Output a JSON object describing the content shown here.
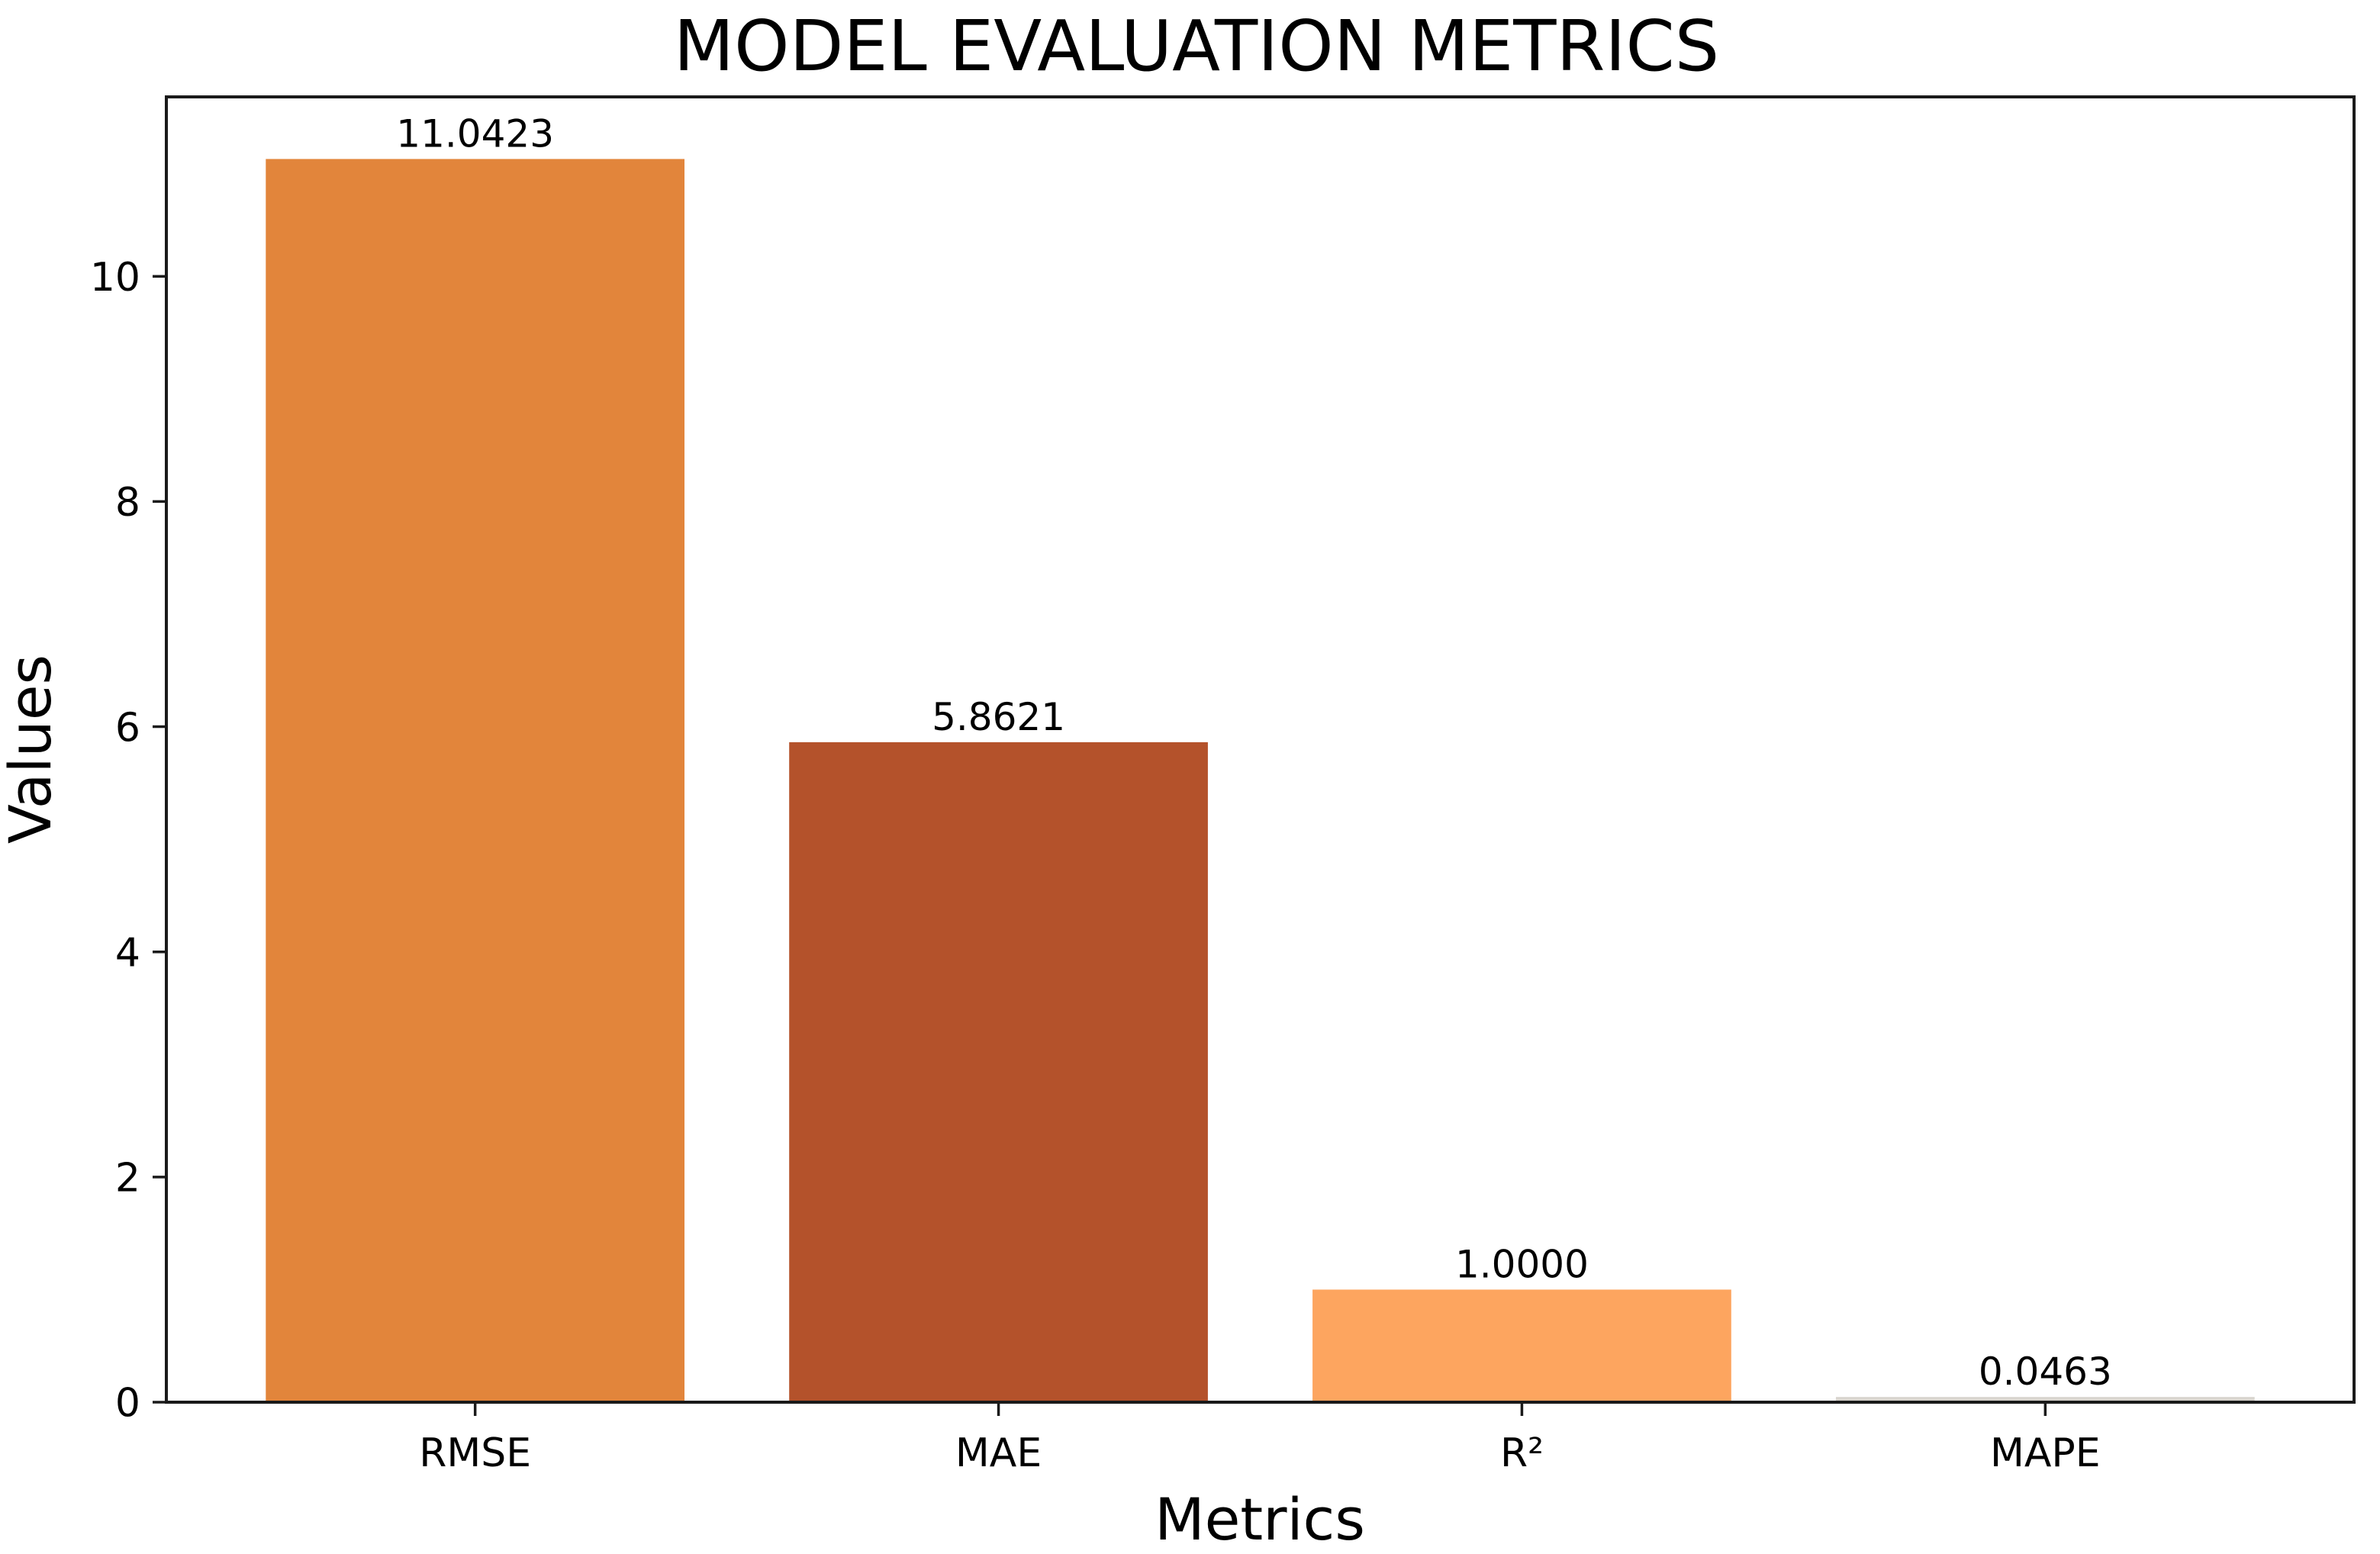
{
  "chart_data": {
    "type": "bar",
    "title": "MODEL EVALUATION METRICS",
    "xlabel": "Metrics",
    "ylabel": "Values",
    "categories": [
      "RMSE",
      "MAE",
      "R²",
      "MAPE"
    ],
    "values": [
      11.0423,
      5.8621,
      1.0,
      0.0463
    ],
    "value_labels": [
      "11.0423",
      "5.8621",
      "1.0000",
      "0.0463"
    ],
    "bar_colors": [
      "#E2853B",
      "#B4522B",
      "#FDA55F",
      "#D9D5CF"
    ],
    "ylim": [
      0,
      11.594
    ],
    "yticks": [
      0,
      2,
      4,
      6,
      8,
      10
    ],
    "grid": false,
    "legend": null,
    "frame": "full-box",
    "background_color": "#ffffff",
    "spine_color": "#1a1a1a"
  }
}
